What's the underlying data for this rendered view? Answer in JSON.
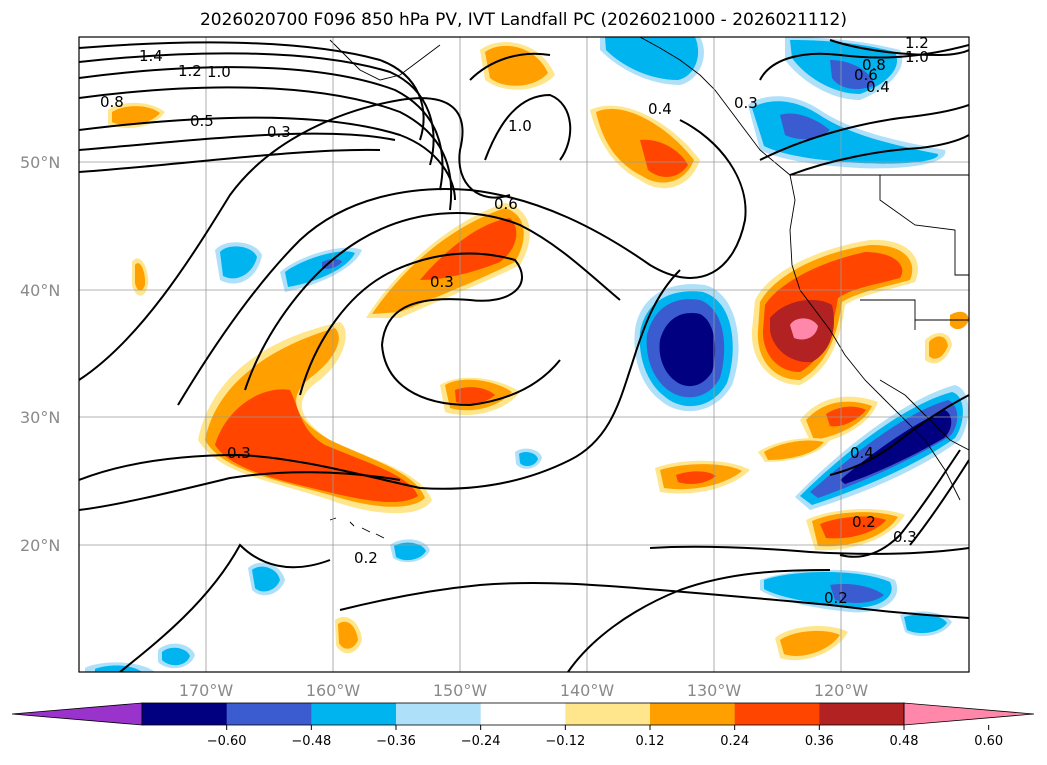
{
  "title": "2026020700 F096 850 hPa PV, IVT Landfall PC (2026021000 - 2026021112)",
  "map": {
    "lat_labels": [
      "50°N",
      "40°N",
      "30°N",
      "20°N"
    ],
    "lon_labels": [
      "170°W",
      "160°W",
      "150°W",
      "140°W",
      "130°W",
      "120°W"
    ],
    "lon_range": [
      -180,
      -110
    ],
    "lat_range": [
      10,
      60
    ],
    "grid": true
  },
  "contour_labels": [
    "1.4",
    "1.2",
    "1.0",
    "0.8",
    "0.5",
    "0.3",
    "1.0",
    "0.6",
    "0.3",
    "0.3",
    "0.4",
    "0.3",
    "0.2",
    "0.4",
    "0.2",
    "0.3",
    "0.2",
    "1.2",
    "1.0",
    "0.8",
    "0.6",
    "0.4"
  ],
  "colorbar": {
    "ticks": [
      "−0.60",
      "−0.48",
      "−0.36",
      "−0.24",
      "−0.12",
      "0.12",
      "0.24",
      "0.36",
      "0.48",
      "0.60"
    ],
    "colors": [
      "#9933cc",
      "#000080",
      "#3b5bd1",
      "#00b4f0",
      "#aee0fa",
      "#ffffff",
      "#ffe68c",
      "#ffa000",
      "#ff4500",
      "#b22222",
      "#ff88aa"
    ]
  }
}
